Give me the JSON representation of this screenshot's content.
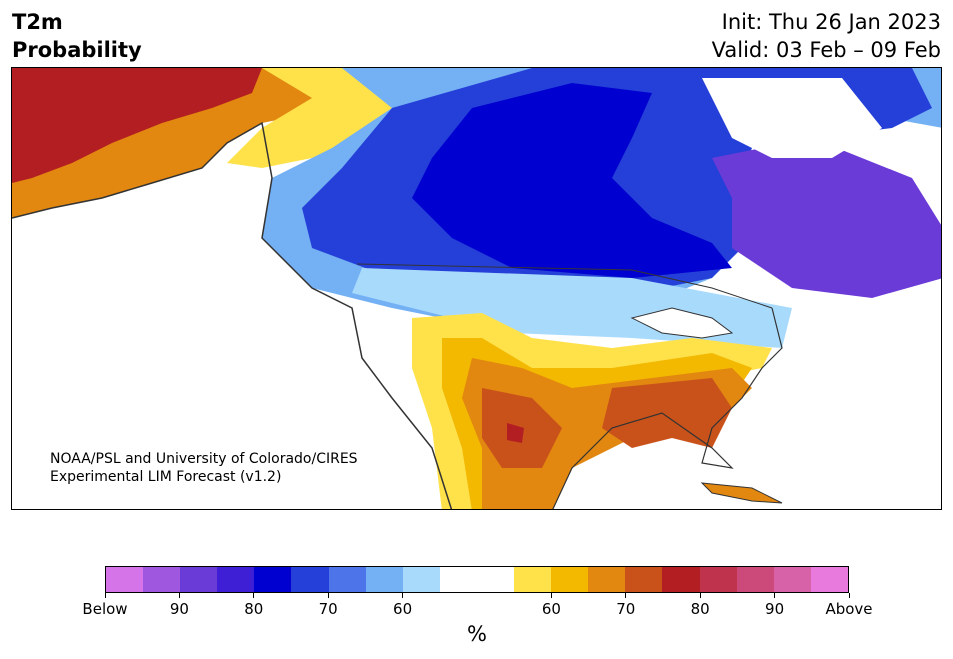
{
  "header": {
    "variable": "T2m",
    "product": "Probability",
    "init": "Init: Thu 26 Jan 2023",
    "valid": "Valid: 03 Feb – 09 Feb"
  },
  "map": {
    "credit_line1": "NOAA/PSL and University of Colorado/CIRES",
    "credit_line2": "Experimental LIM Forecast (v1.2)"
  },
  "colorbar": {
    "colors": [
      "#d573e8",
      "#9f57e0",
      "#6b3bd8",
      "#3e1fd6",
      "#0000d0",
      "#2540d8",
      "#4d74e8",
      "#74b0f4",
      "#a8dafc",
      "#ffffff",
      "#ffffff",
      "#ffe14a",
      "#f3b800",
      "#e2870f",
      "#c9521a",
      "#b31e22",
      "#c0334c",
      "#cc4a7a",
      "#d862a8",
      "#e87ade"
    ],
    "tick_labels": [
      "Below",
      "90",
      "80",
      "70",
      "60",
      "60",
      "70",
      "80",
      "90",
      "Above"
    ],
    "unit": "%"
  }
}
